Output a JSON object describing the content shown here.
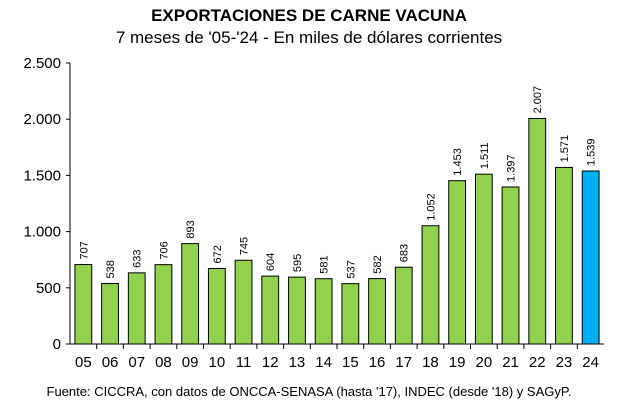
{
  "chart_data": {
    "type": "bar",
    "title": "EXPORTACIONES DE CARNE VACUNA",
    "subtitle": "7 meses de '05-'24 - En miles de dólares corrientes",
    "xlabel": "",
    "ylabel": "",
    "ylim": [
      0,
      2500
    ],
    "yticks": [
      0,
      500,
      1000,
      1500,
      2000,
      2500
    ],
    "ytick_labels": [
      "0",
      "500",
      "1.000",
      "1.500",
      "2.000",
      "2.500"
    ],
    "categories": [
      "05",
      "06",
      "07",
      "08",
      "09",
      "10",
      "11",
      "12",
      "13",
      "14",
      "15",
      "16",
      "17",
      "18",
      "19",
      "20",
      "21",
      "22",
      "23",
      "24"
    ],
    "values": [
      707,
      538,
      633,
      706,
      893,
      672,
      745,
      604,
      595,
      581,
      537,
      582,
      683,
      1052,
      1453,
      1511,
      1397,
      2007,
      1571,
      1539
    ],
    "data_labels": [
      "707",
      "538",
      "633",
      "706",
      "893",
      "672",
      "745",
      "604",
      "595",
      "581",
      "537",
      "582",
      "683",
      "1.052",
      "1.453",
      "1.511",
      "1.397",
      "2.007",
      "1.571",
      "1.539"
    ],
    "bar_color": "#92D050",
    "highlight_color": "#00B0F0",
    "highlight_index": 19,
    "grid": false,
    "legend": "none",
    "source": "Fuente: CICCRA, con datos de ONCCA-SENASA (hasta '17), INDEC (desde '18) y SAGyP."
  }
}
